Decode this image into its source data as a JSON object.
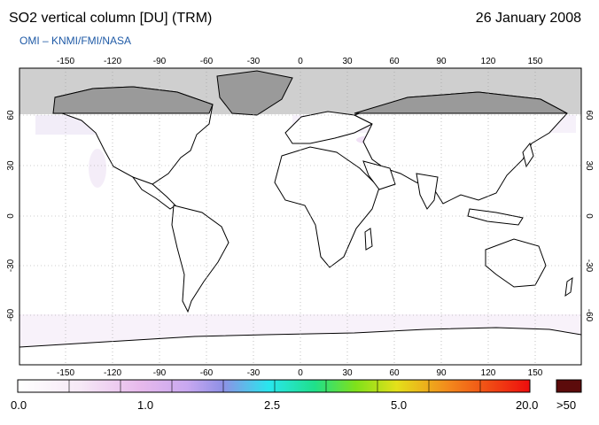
{
  "header": {
    "title": "SO2 vertical column [DU] (TRM)",
    "date": "26 January 2008",
    "credit": "OMI  –  KNMI/FMI/NASA"
  },
  "axes": {
    "lon_ticks": [
      "-150",
      "-120",
      "-90",
      "-60",
      "-30",
      "0",
      "30",
      "60",
      "90",
      "120",
      "150"
    ],
    "lat_ticks": [
      "60",
      "30",
      "0",
      "-30",
      "-60"
    ]
  },
  "colorbar": {
    "labels": [
      "0.0",
      "1.0",
      "2.5",
      "5.0",
      "20.0"
    ],
    "overflow_label": ">50",
    "overflow_color": "#5c0b0b"
  },
  "colors": {
    "no_data": "#cfcfcf",
    "grid": "#999999",
    "coast": "#000000"
  }
}
